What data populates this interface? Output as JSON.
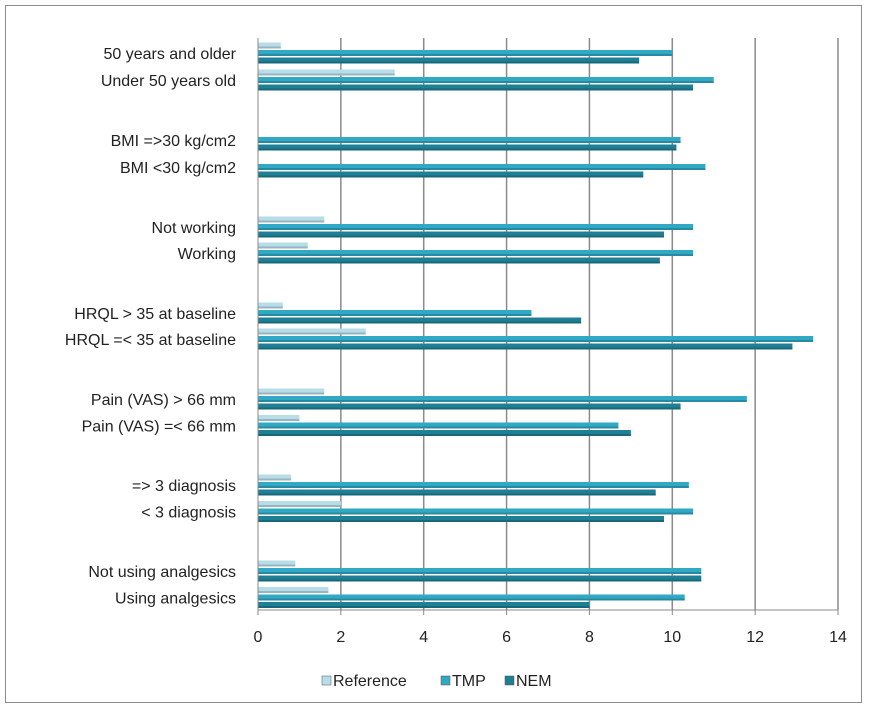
{
  "chart_data": {
    "type": "bar",
    "orientation": "horizontal",
    "categories": [
      "Using analgesics",
      "Not using analgesics",
      "< 3 diagnosis",
      "=> 3 diagnosis",
      "Pain (VAS) =< 66 mm",
      "Pain (VAS) > 66 mm",
      "HRQL =< 35 at baseline",
      "HRQL > 35 at baseline",
      "Working",
      "Not working",
      "BMI <30 kg/cm2",
      "BMI =>30 kg/cm2",
      "Under 50 years old",
      "50 years  and older"
    ],
    "series": [
      {
        "name": "Reference",
        "color": "#b7dde8",
        "values": [
          1.7,
          0.9,
          2.0,
          0.8,
          1.0,
          1.6,
          2.6,
          0.6,
          1.2,
          1.6,
          0,
          0,
          3.3,
          0.55
        ]
      },
      {
        "name": "TMP",
        "color": "#31a9c4",
        "values": [
          10.3,
          10.7,
          10.5,
          10.4,
          8.7,
          11.8,
          13.4,
          6.6,
          10.5,
          10.5,
          10.8,
          10.2,
          11.0,
          10.0
        ]
      },
      {
        "name": "NEM",
        "color": "#1f7f95",
        "values": [
          8.0,
          10.7,
          9.8,
          9.6,
          9.0,
          10.2,
          12.9,
          7.8,
          9.7,
          9.8,
          9.3,
          10.1,
          10.5,
          9.2
        ]
      }
    ],
    "xlim": [
      0,
      14
    ],
    "xticks": [
      0,
      2,
      4,
      6,
      8,
      10,
      12,
      14
    ],
    "grid": "vertical",
    "legend_position": "bottom",
    "title": "",
    "xlabel": "",
    "ylabel": ""
  }
}
